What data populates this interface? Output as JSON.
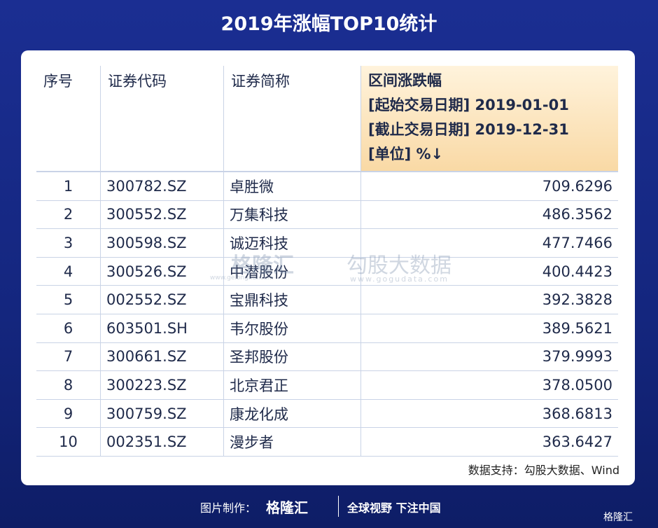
{
  "header": {
    "title": "2019年涨幅TOP10统计"
  },
  "table": {
    "columns": [
      "序号",
      "证券代码",
      "证券简称"
    ],
    "range_header": [
      "区间涨跌幅",
      "[起始交易日期] 2019-01-01",
      "[截止交易日期] 2019-12-31",
      "[单位] %↓"
    ],
    "rows": [
      [
        "1",
        "300782.SZ",
        "卓胜微",
        "709.6296"
      ],
      [
        "2",
        "300552.SZ",
        "万集科技",
        "486.3562"
      ],
      [
        "3",
        "300598.SZ",
        "诚迈科技",
        "477.7466"
      ],
      [
        "4",
        "300526.SZ",
        "中潜股份",
        "400.4423"
      ],
      [
        "5",
        "002552.SZ",
        "宝鼎科技",
        "392.3828"
      ],
      [
        "6",
        "603501.SH",
        "韦尔股份",
        "389.5621"
      ],
      [
        "7",
        "300661.SZ",
        "圣邦股份",
        "379.9993"
      ],
      [
        "8",
        "300223.SZ",
        "北京君正",
        "378.0500"
      ],
      [
        "9",
        "300759.SZ",
        "康龙化成",
        "368.6813"
      ],
      [
        "10",
        "002351.SZ",
        "漫步者",
        "363.6427"
      ]
    ]
  },
  "watermark": {
    "brand": "格隆汇",
    "brand_url": "www.gelonghui.com",
    "data": "勾股大数据",
    "data_url": "www.gogudata.com"
  },
  "source": "数据支持：勾股大数据、Wind",
  "footer": {
    "made_by": "图片制作：",
    "logo": "格隆汇",
    "slogan": "全球视野 下注中国",
    "corner": "格隆汇"
  }
}
